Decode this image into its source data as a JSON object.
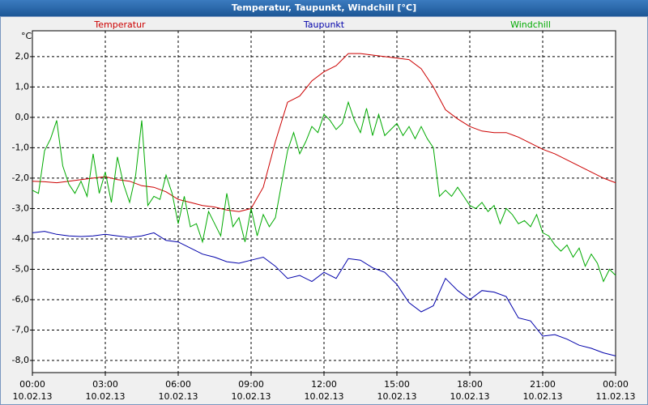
{
  "chart_data": {
    "type": "line",
    "title": "Temperatur, Taupunkt, Windchill [°C]",
    "y_unit": "°C",
    "xlim": [
      0,
      24
    ],
    "xticks": [
      {
        "value": 0,
        "label": "00:00"
      },
      {
        "value": 3,
        "label": "03:00"
      },
      {
        "value": 6,
        "label": "06:00"
      },
      {
        "value": 9,
        "label": "09:00"
      },
      {
        "value": 12,
        "label": "12:00"
      },
      {
        "value": 15,
        "label": "15:00"
      },
      {
        "value": 18,
        "label": "18:00"
      },
      {
        "value": 21,
        "label": "21:00"
      },
      {
        "value": 24,
        "label": "00:00"
      }
    ],
    "xtick_dates": [
      "10.02.13",
      "10.02.13",
      "10.02.13",
      "10.02.13",
      "10.02.13",
      "10.02.13",
      "10.02.13",
      "10.02.13",
      "11.02.13"
    ],
    "ylim": [
      -8.4,
      2.85
    ],
    "yticks": [
      {
        "value": 2,
        "label": "2,0"
      },
      {
        "value": 1,
        "label": "1,0"
      },
      {
        "value": 0,
        "label": "0,0"
      },
      {
        "value": -1,
        "label": "-1,0"
      },
      {
        "value": -2,
        "label": "-2,0"
      },
      {
        "value": -3,
        "label": "-3,0"
      },
      {
        "value": -4,
        "label": "-4,0"
      },
      {
        "value": -5,
        "label": "-5,0"
      },
      {
        "value": -6,
        "label": "-6,0"
      },
      {
        "value": -7,
        "label": "-7,0"
      },
      {
        "value": -8,
        "label": "-8,0"
      }
    ],
    "grid": true,
    "series": [
      {
        "name": "Temperatur",
        "color": "#cc0000",
        "x": [
          0,
          0.5,
          1,
          1.5,
          2,
          2.5,
          3,
          3.5,
          4,
          4.5,
          5,
          5.5,
          6,
          6.5,
          7,
          7.5,
          8,
          8.5,
          9,
          9.5,
          10,
          10.5,
          11,
          11.5,
          12,
          12.5,
          13,
          13.5,
          14,
          14.5,
          15,
          15.5,
          16,
          16.5,
          17,
          17.5,
          18,
          18.5,
          19,
          19.5,
          20,
          20.5,
          21,
          21.5,
          22,
          22.5,
          23,
          23.5,
          24
        ],
        "values": [
          -2.1,
          -2.12,
          -2.15,
          -2.1,
          -2.05,
          -2.0,
          -1.95,
          -2.05,
          -2.1,
          -2.25,
          -2.3,
          -2.45,
          -2.7,
          -2.8,
          -2.9,
          -2.95,
          -3.05,
          -3.1,
          -3.0,
          -2.3,
          -0.8,
          0.5,
          0.7,
          1.2,
          1.5,
          1.7,
          2.1,
          2.1,
          2.05,
          2.0,
          1.95,
          1.9,
          1.6,
          1.0,
          0.25,
          -0.05,
          -0.3,
          -0.45,
          -0.5,
          -0.5,
          -0.65,
          -0.85,
          -1.05,
          -1.2,
          -1.4,
          -1.6,
          -1.8,
          -2.0,
          -2.15
        ]
      },
      {
        "name": "Taupunkt",
        "color": "#0000aa",
        "x": [
          0,
          0.5,
          1,
          1.5,
          2,
          2.5,
          3,
          3.5,
          4,
          4.5,
          5,
          5.5,
          6,
          6.5,
          7,
          7.5,
          8,
          8.5,
          9,
          9.5,
          10,
          10.5,
          11,
          11.5,
          12,
          12.5,
          13,
          13.5,
          14,
          14.5,
          15,
          15.5,
          16,
          16.5,
          17,
          17.5,
          18,
          18.5,
          19,
          19.5,
          20,
          20.5,
          21,
          21.5,
          22,
          22.5,
          23,
          23.5,
          24
        ],
        "values": [
          -3.8,
          -3.75,
          -3.85,
          -3.9,
          -3.92,
          -3.9,
          -3.85,
          -3.9,
          -3.95,
          -3.9,
          -3.8,
          -4.05,
          -4.1,
          -4.3,
          -4.5,
          -4.6,
          -4.75,
          -4.8,
          -4.7,
          -4.6,
          -4.9,
          -5.3,
          -5.2,
          -5.4,
          -5.1,
          -5.3,
          -4.65,
          -4.7,
          -4.95,
          -5.1,
          -5.5,
          -6.1,
          -6.4,
          -6.2,
          -5.3,
          -5.7,
          -6.0,
          -5.7,
          -5.75,
          -5.9,
          -6.6,
          -6.7,
          -7.2,
          -7.15,
          -7.3,
          -7.5,
          -7.6,
          -7.75,
          -7.85
        ]
      },
      {
        "name": "Windchill",
        "color": "#00aa00",
        "x": [
          0,
          0.25,
          0.5,
          0.75,
          1,
          1.25,
          1.5,
          1.75,
          2,
          2.25,
          2.5,
          2.75,
          3,
          3.25,
          3.5,
          3.75,
          4,
          4.25,
          4.5,
          4.75,
          5,
          5.25,
          5.5,
          5.75,
          6,
          6.25,
          6.5,
          6.75,
          7,
          7.25,
          7.5,
          7.75,
          8,
          8.25,
          8.5,
          8.75,
          9,
          9.25,
          9.5,
          9.75,
          10,
          10.25,
          10.5,
          10.75,
          11,
          11.25,
          11.5,
          11.75,
          12,
          12.25,
          12.5,
          12.75,
          13,
          13.25,
          13.5,
          13.75,
          14,
          14.25,
          14.5,
          14.75,
          15,
          15.25,
          15.5,
          15.75,
          16,
          16.25,
          16.5,
          16.75,
          17,
          17.25,
          17.5,
          17.75,
          18,
          18.25,
          18.5,
          18.75,
          19,
          19.25,
          19.5,
          19.75,
          20,
          20.25,
          20.5,
          20.75,
          21,
          21.25,
          21.5,
          21.75,
          22,
          22.25,
          22.5,
          22.75,
          23,
          23.25,
          23.5,
          23.75,
          24
        ],
        "values": [
          -2.4,
          -2.5,
          -1.1,
          -0.7,
          -0.1,
          -1.6,
          -2.2,
          -2.5,
          -2.1,
          -2.6,
          -1.2,
          -2.5,
          -1.8,
          -2.8,
          -1.3,
          -2.2,
          -2.8,
          -1.9,
          -0.1,
          -2.9,
          -2.6,
          -2.7,
          -1.9,
          -2.5,
          -3.5,
          -2.6,
          -3.6,
          -3.5,
          -4.1,
          -3.1,
          -3.5,
          -3.9,
          -2.5,
          -3.6,
          -3.3,
          -4.1,
          -3.0,
          -3.9,
          -3.2,
          -3.6,
          -3.3,
          -2.2,
          -1.1,
          -0.5,
          -1.2,
          -0.8,
          -0.3,
          -0.5,
          0.1,
          -0.1,
          -0.4,
          -0.2,
          0.5,
          -0.1,
          -0.5,
          0.3,
          -0.6,
          0.1,
          -0.6,
          -0.4,
          -0.2,
          -0.6,
          -0.3,
          -0.7,
          -0.3,
          -0.7,
          -1.0,
          -2.6,
          -2.4,
          -2.6,
          -2.3,
          -2.6,
          -2.9,
          -3.0,
          -2.8,
          -3.1,
          -2.9,
          -3.5,
          -3.0,
          -3.2,
          -3.5,
          -3.4,
          -3.6,
          -3.2,
          -3.8,
          -3.9,
          -4.2,
          -4.4,
          -4.2,
          -4.6,
          -4.3,
          -4.9,
          -4.5,
          -4.8,
          -5.4,
          -5.0,
          -5.2
        ]
      }
    ]
  }
}
